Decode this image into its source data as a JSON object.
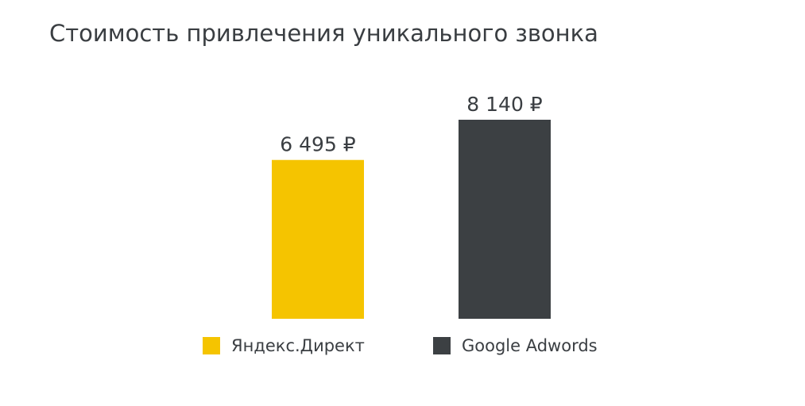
{
  "chart_data": {
    "type": "bar",
    "title": "Стоимость привлечения уникального звонка",
    "series": [
      {
        "name": "Яндекс.Директ",
        "color": "#f5c400",
        "values": [
          6495
        ],
        "value_labels": [
          "6 495 ₽"
        ]
      },
      {
        "name": "Google Adwords",
        "color": "#3c4043",
        "values": [
          8140
        ],
        "value_labels": [
          "8 140 ₽"
        ]
      }
    ]
  }
}
